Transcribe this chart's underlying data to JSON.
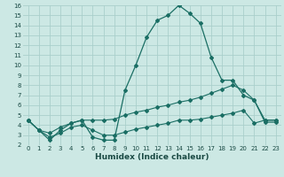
{
  "xlabel": "Humidex (Indice chaleur)",
  "bg_color": "#cce8e4",
  "grid_color": "#aacfcb",
  "line_color": "#1a6e64",
  "xlim": [
    -0.5,
    23.5
  ],
  "ylim": [
    2,
    16
  ],
  "xticks": [
    0,
    1,
    2,
    3,
    4,
    5,
    6,
    7,
    8,
    9,
    10,
    11,
    12,
    13,
    14,
    15,
    16,
    17,
    18,
    19,
    20,
    21,
    22,
    23
  ],
  "yticks": [
    2,
    3,
    4,
    5,
    6,
    7,
    8,
    9,
    10,
    11,
    12,
    13,
    14,
    15,
    16
  ],
  "series1_x": [
    0,
    1,
    2,
    3,
    4,
    5,
    6,
    7,
    8,
    9,
    10,
    11,
    12,
    13,
    14,
    15,
    16,
    17,
    18,
    19,
    20,
    21,
    22,
    23
  ],
  "series1_y": [
    4.5,
    3.5,
    2.5,
    3.5,
    4.2,
    4.5,
    2.8,
    2.5,
    2.5,
    7.5,
    10.0,
    12.8,
    14.5,
    15.0,
    16.0,
    15.2,
    14.2,
    10.8,
    8.5,
    8.5,
    7.0,
    6.5,
    4.3,
    4.3
  ],
  "series2_x": [
    0,
    1,
    2,
    3,
    4,
    5,
    6,
    7,
    8,
    9,
    10,
    11,
    12,
    13,
    14,
    15,
    16,
    17,
    18,
    19,
    20,
    21,
    22,
    23
  ],
  "series2_y": [
    4.5,
    3.5,
    3.2,
    3.8,
    4.2,
    4.5,
    4.5,
    4.5,
    4.6,
    5.0,
    5.3,
    5.5,
    5.8,
    6.0,
    6.3,
    6.5,
    6.8,
    7.2,
    7.6,
    8.0,
    7.5,
    6.5,
    4.5,
    4.5
  ],
  "series3_x": [
    0,
    1,
    2,
    3,
    4,
    5,
    6,
    7,
    8,
    9,
    10,
    11,
    12,
    13,
    14,
    15,
    16,
    17,
    18,
    19,
    20,
    21,
    22,
    23
  ],
  "series3_y": [
    4.5,
    3.5,
    2.8,
    3.2,
    3.8,
    4.0,
    3.5,
    3.0,
    3.0,
    3.3,
    3.6,
    3.8,
    4.0,
    4.2,
    4.5,
    4.5,
    4.6,
    4.8,
    5.0,
    5.2,
    5.5,
    4.2,
    4.5,
    4.5
  ]
}
